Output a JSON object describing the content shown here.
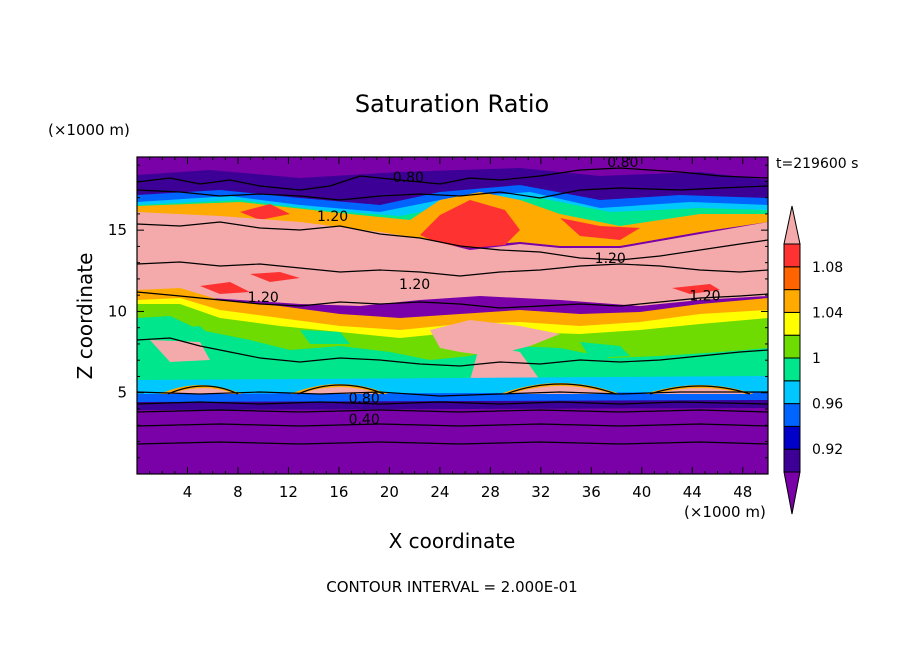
{
  "chart_data": {
    "type": "contour",
    "title": "Saturation Ratio",
    "xlabel": "X coordinate",
    "ylabel": "Z coordinate",
    "x_unit": "(×1000 m)",
    "y_unit": "(×1000 m)",
    "time_label": "t=219600 s",
    "footer": "CONTOUR INTERVAL = 2.000E-01",
    "xlim": [
      0,
      50
    ],
    "ylim": [
      0,
      19.5
    ],
    "x_ticks": [
      4,
      8,
      12,
      16,
      20,
      24,
      28,
      32,
      36,
      40,
      44,
      48
    ],
    "y_ticks": [
      5,
      10,
      15
    ],
    "colorbar": {
      "levels": [
        0.9,
        0.92,
        0.94,
        0.96,
        0.98,
        1.0,
        1.02,
        1.04,
        1.06,
        1.08,
        1.1
      ],
      "tick_labels": [
        "1.08",
        "1.04",
        "1",
        "0.96",
        "0.92"
      ],
      "tick_values": [
        1.08,
        1.04,
        1.0,
        0.96,
        0.92
      ],
      "colors": [
        "#7a00a8",
        "#3c0096",
        "#0000c8",
        "#0064ff",
        "#00c8ff",
        "#00e68c",
        "#6edc00",
        "#ffff00",
        "#ffaa00",
        "#ff6400",
        "#ff3232",
        "#f4aaaa"
      ]
    },
    "contour_labels": [
      {
        "text": "0.80",
        "x": 21.5,
        "z": 18.1
      },
      {
        "text": "0.80",
        "x": 38.5,
        "z": 19.0
      },
      {
        "text": "1.20",
        "x": 15.5,
        "z": 15.7
      },
      {
        "text": "1.20",
        "x": 37.5,
        "z": 13.1
      },
      {
        "text": "1.20",
        "x": 10.0,
        "z": 10.7
      },
      {
        "text": "1.20",
        "x": 22.0,
        "z": 11.5
      },
      {
        "text": "1.20",
        "x": 45.0,
        "z": 10.8
      },
      {
        "text": "0.80",
        "x": 18.0,
        "z": 4.5
      },
      {
        "text": "0.40",
        "x": 18.0,
        "z": 3.2
      }
    ]
  }
}
